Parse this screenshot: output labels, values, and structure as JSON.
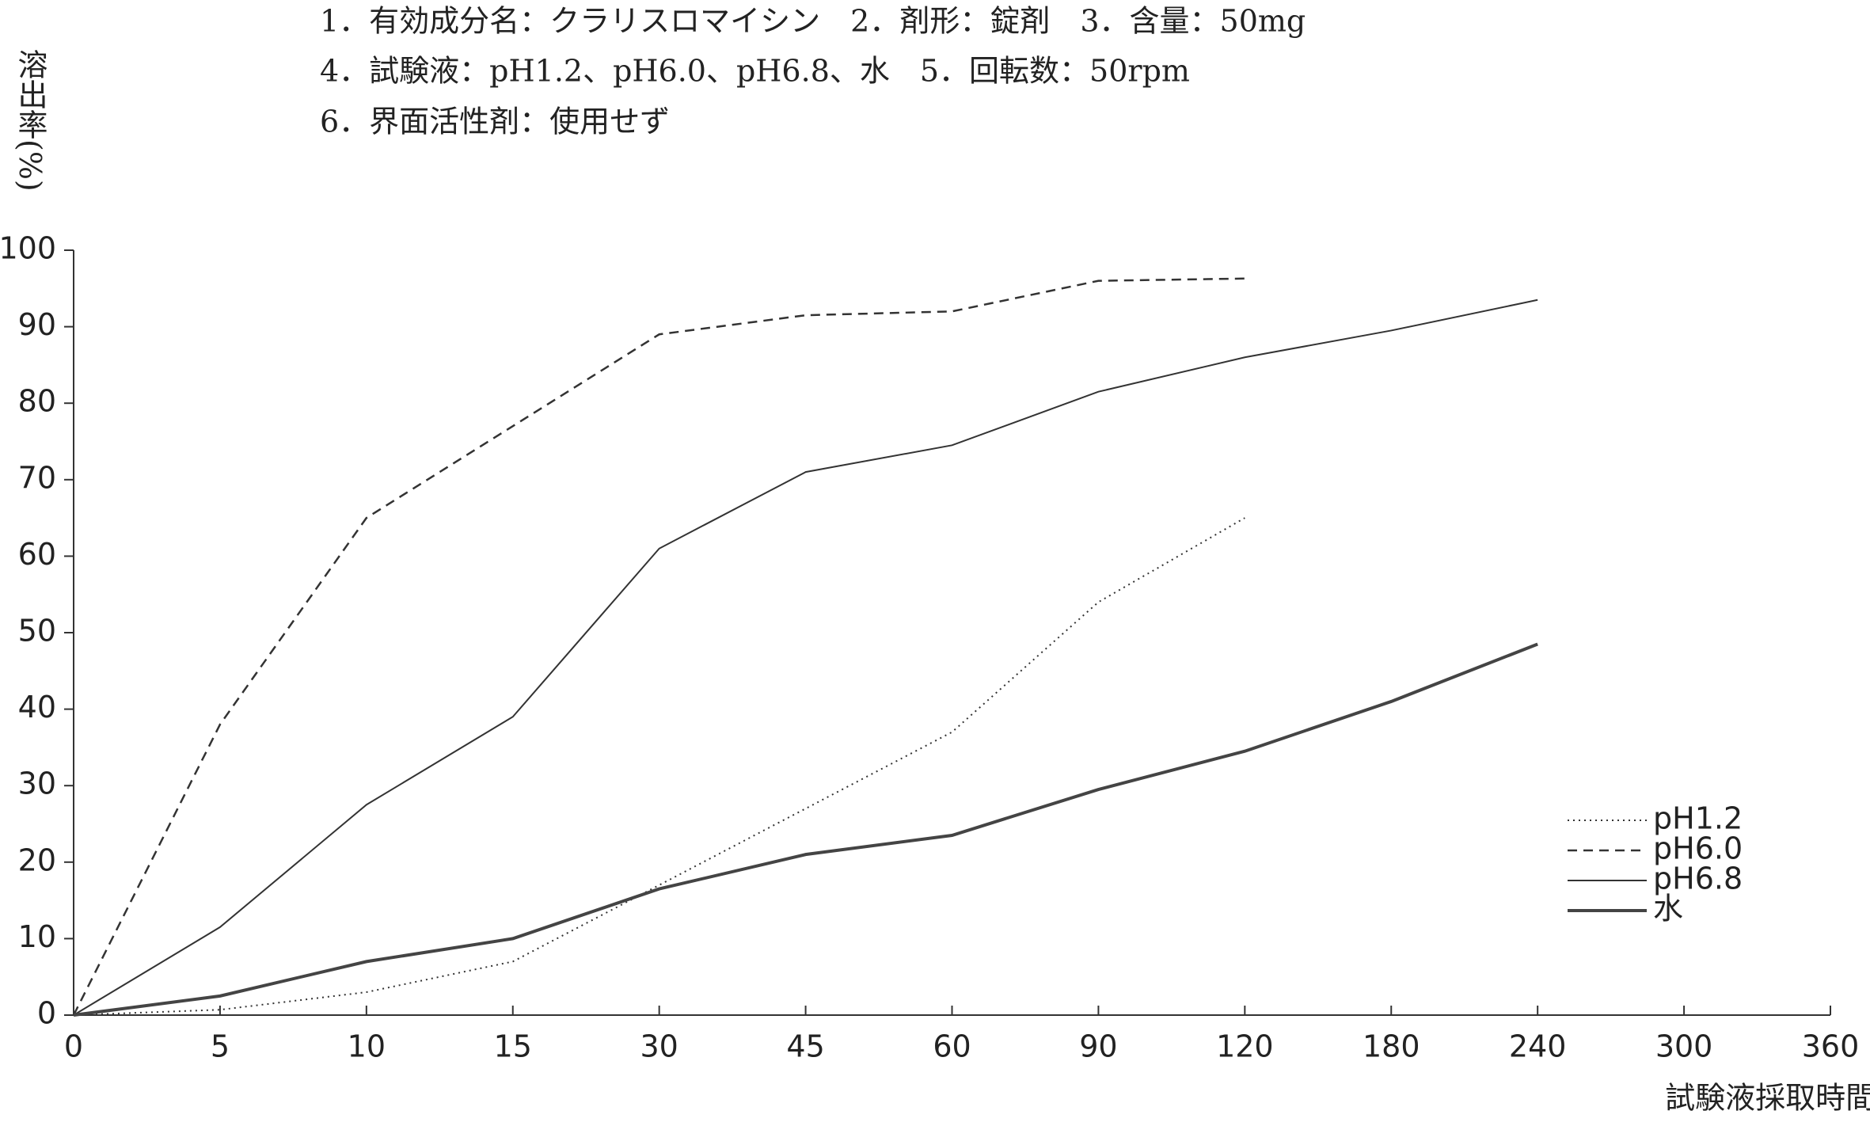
{
  "chart_data": {
    "type": "line",
    "title_lines": [
      "1．有効成分名：クラリスロマイシン　2．剤形：錠剤　3．含量：50mg",
      "4．試験液：pH1.2、pH6.0、pH6.8、水　5．回転数：50rpm",
      "6．界面活性剤：使用せず"
    ],
    "y_label": "溶出率(%)",
    "x_label": "試験液採取時間(分)",
    "categories": [
      "0",
      "5",
      "10",
      "15",
      "30",
      "45",
      "60",
      "90",
      "120",
      "180",
      "240",
      "300",
      "360"
    ],
    "ylim": [
      0,
      100
    ],
    "yticks": [
      0,
      10,
      20,
      30,
      40,
      50,
      60,
      70,
      80,
      90,
      100
    ],
    "legend": "right",
    "series": [
      {
        "name": "pH1.2",
        "color": "#333333",
        "style": "dotted",
        "values": [
          0,
          0.7,
          3,
          7,
          17,
          27,
          37,
          54,
          65,
          null,
          null,
          null,
          null
        ]
      },
      {
        "name": "pH6.0",
        "color": "#333333",
        "style": "dashed",
        "values": [
          0,
          38,
          65,
          77,
          89,
          91.5,
          92,
          96,
          96.3,
          null,
          null,
          null,
          null
        ]
      },
      {
        "name": "pH6.8",
        "color": "#333333",
        "style": "solid",
        "values": [
          0,
          11.5,
          27.5,
          39,
          61,
          71,
          74.5,
          81.5,
          86,
          89.5,
          93.5,
          null,
          null
        ]
      },
      {
        "name": "水",
        "color": "#444444",
        "style": "thick",
        "values": [
          0,
          2.5,
          7,
          10,
          16.5,
          21,
          23.5,
          29.5,
          34.5,
          41,
          48.5,
          null,
          null
        ]
      }
    ]
  }
}
